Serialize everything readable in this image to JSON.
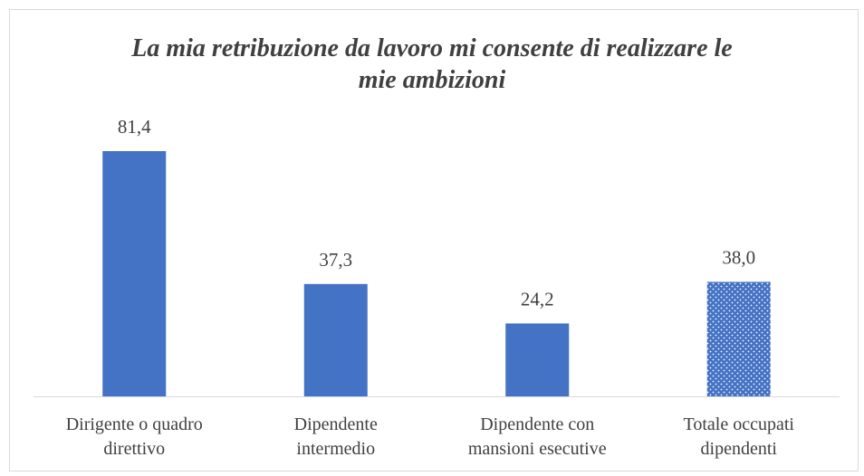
{
  "chart_data": {
    "type": "bar",
    "title": "La mia retribuzione da lavoro mi consente di realizzare le mie ambizioni",
    "categories": [
      "Dirigente o quadro direttivo",
      "Dipendente intermedio",
      "Dipendente con mansioni esecutive",
      "Totale occupati dipendenti"
    ],
    "values": [
      81.4,
      37.3,
      24.2,
      38.0
    ],
    "value_labels": [
      "81,4",
      "37,3",
      "24,2",
      "38,0"
    ],
    "color": "#4472c4",
    "dotted": [
      false,
      false,
      false,
      true
    ]
  }
}
